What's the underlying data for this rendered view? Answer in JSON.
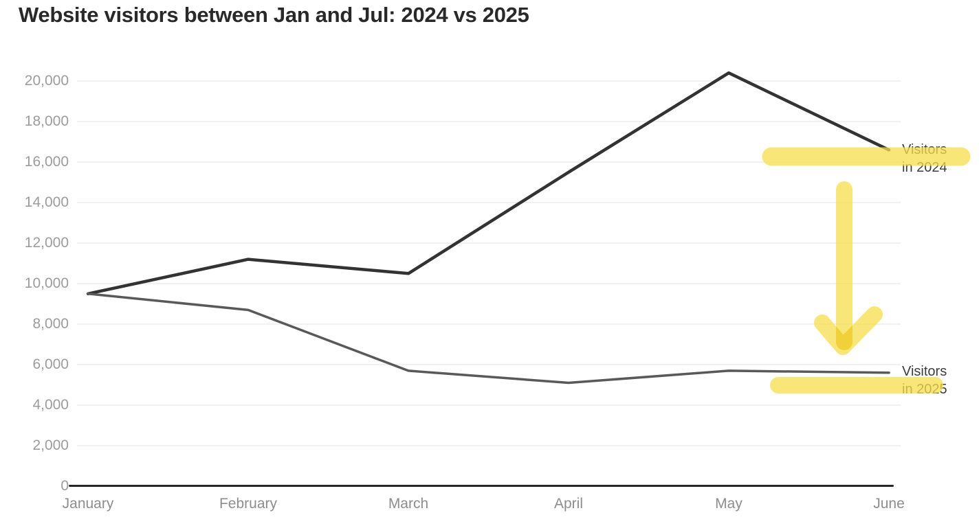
{
  "chart_data": {
    "type": "line",
    "title": "Website visitors between Jan and Jul: 2024 vs 2025",
    "categories": [
      "January",
      "February",
      "March",
      "April",
      "May",
      "June"
    ],
    "series": [
      {
        "name": "Visitors in 2024",
        "color": "#333333",
        "stroke_width": 4.5,
        "values": [
          9500,
          11200,
          10500,
          15500,
          20400,
          16600
        ]
      },
      {
        "name": "Visitors in 2025",
        "color": "#595959",
        "stroke_width": 3.5,
        "values": [
          9500,
          8700,
          5700,
          5100,
          5700,
          5600
        ]
      }
    ],
    "xlabel": "",
    "ylabel": "",
    "ylim": [
      0,
      20000
    ],
    "ytick_step": 2000,
    "y_tick_labels": [
      "0",
      "2,000",
      "4,000",
      "6,000",
      "8,000",
      "10,000",
      "12,000",
      "14,000",
      "16,000",
      "18,000",
      "20,000"
    ],
    "grid": true,
    "legend_position": "inline-right-labels",
    "colors": {
      "grid": "#f1f1f1",
      "axis": "#262626",
      "y_tick_text": "#9c9c9c",
      "x_tick_text": "#8d8d8d",
      "title_text": "#292929",
      "annotation_text": "#3c3c3c",
      "highlighter_yellow": "#f6df4b"
    },
    "annotations": {
      "label_2024": {
        "line1": "Visitors",
        "line2": "in 2024"
      },
      "label_2025": {
        "line1": "Visitors",
        "line2": "in 2025"
      },
      "marks": [
        "highlight-band-over-2024-label",
        "thick-down-arrow",
        "highlight-band-over-2025-label"
      ]
    }
  }
}
